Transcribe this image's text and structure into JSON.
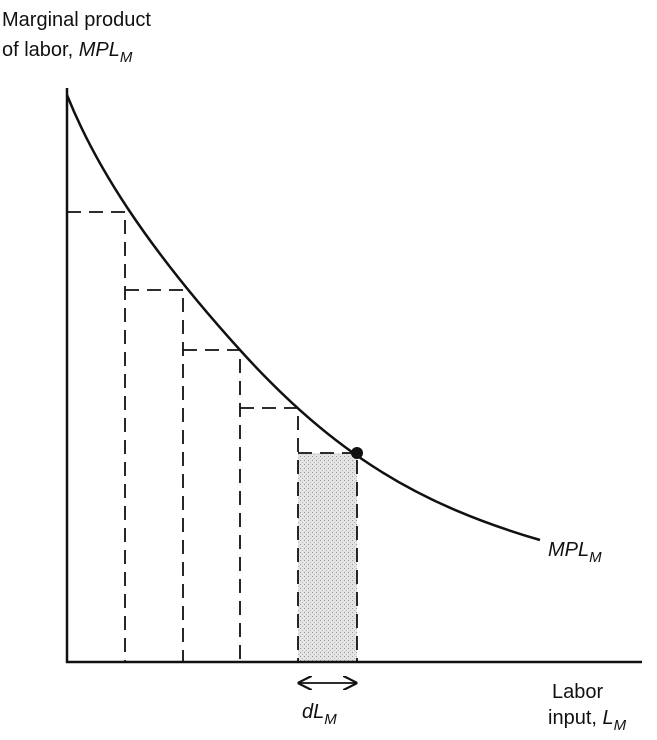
{
  "y_axis_label": {
    "line1": "Marginal product",
    "line2": {
      "text": "of labor, ",
      "symbol": "MPL",
      "subscript": "M"
    }
  },
  "x_axis_label": {
    "line1": "Labor",
    "line2": {
      "text": "input, ",
      "symbol": "L",
      "subscript": "M"
    }
  },
  "curve_label": {
    "symbol": "MPL",
    "subscript": "M"
  },
  "interval_label": {
    "symbol": "dL",
    "subscript": "M"
  }
}
